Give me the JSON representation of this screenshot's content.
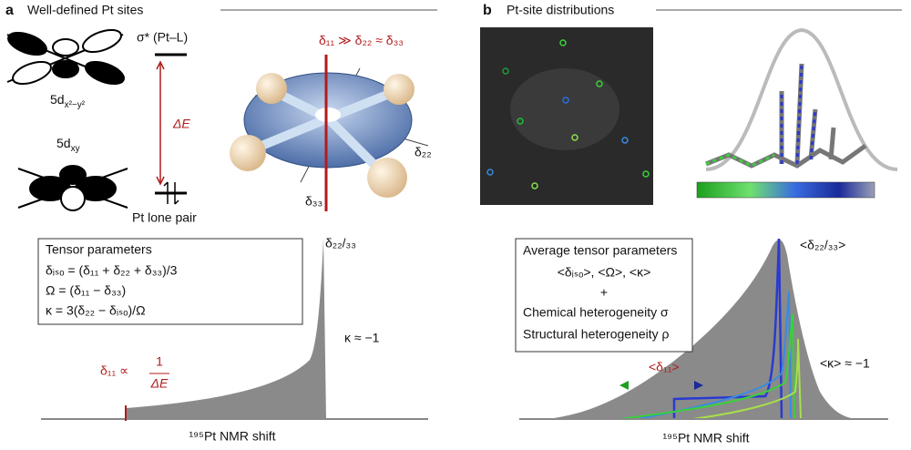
{
  "panel_a": {
    "label": "a",
    "title": "Well-defined Pt sites",
    "orbital_top": {
      "base": "5d",
      "sub": "x²−y²"
    },
    "sigma_star": "σ* (Pt–L)",
    "delta_e": "ΔE",
    "orbital_bottom": {
      "base": "5d",
      "sub": "xy"
    },
    "lone_pair": "Pt lone pair",
    "tensor_relation": "δ₁₁ ≫ δ₂₂ ≈ δ₃₃",
    "axis_22": "δ₂₂",
    "axis_33": "δ₃₃",
    "box": {
      "title": "Tensor parameters",
      "lines": [
        "δᵢₛₒ = (δ₁₁ + δ₂₂ + δ₃₃)/3",
        "Ω = (δ₁₁ − δ₃₃)",
        "κ = 3(δ₂₂ − δᵢₛₒ)/Ω"
      ]
    },
    "peak_label": "δ₂₂/₃₃",
    "kappa": "κ ≈ −1",
    "delta11_label": "δ₁₁ ∝",
    "fraction_num": "1",
    "fraction_den": "ΔE",
    "x_axis": "¹⁹⁵Pt NMR shift"
  },
  "panel_b": {
    "label": "b",
    "title": "Pt-site distributions",
    "box": {
      "title": "Average tensor parameters",
      "lines": [
        "<δᵢₛₒ>, <Ω>, <κ>",
        "+",
        "Chemical heterogeneity  σ",
        "Structural heterogeneity  ρ"
      ]
    },
    "peak_label": "<δ₂₂/₃₃>",
    "kappa": "<κ> ≈ −1",
    "delta11": "<δ₁₁>",
    "x_axis": "¹⁹⁵Pt NMR shift"
  }
}
